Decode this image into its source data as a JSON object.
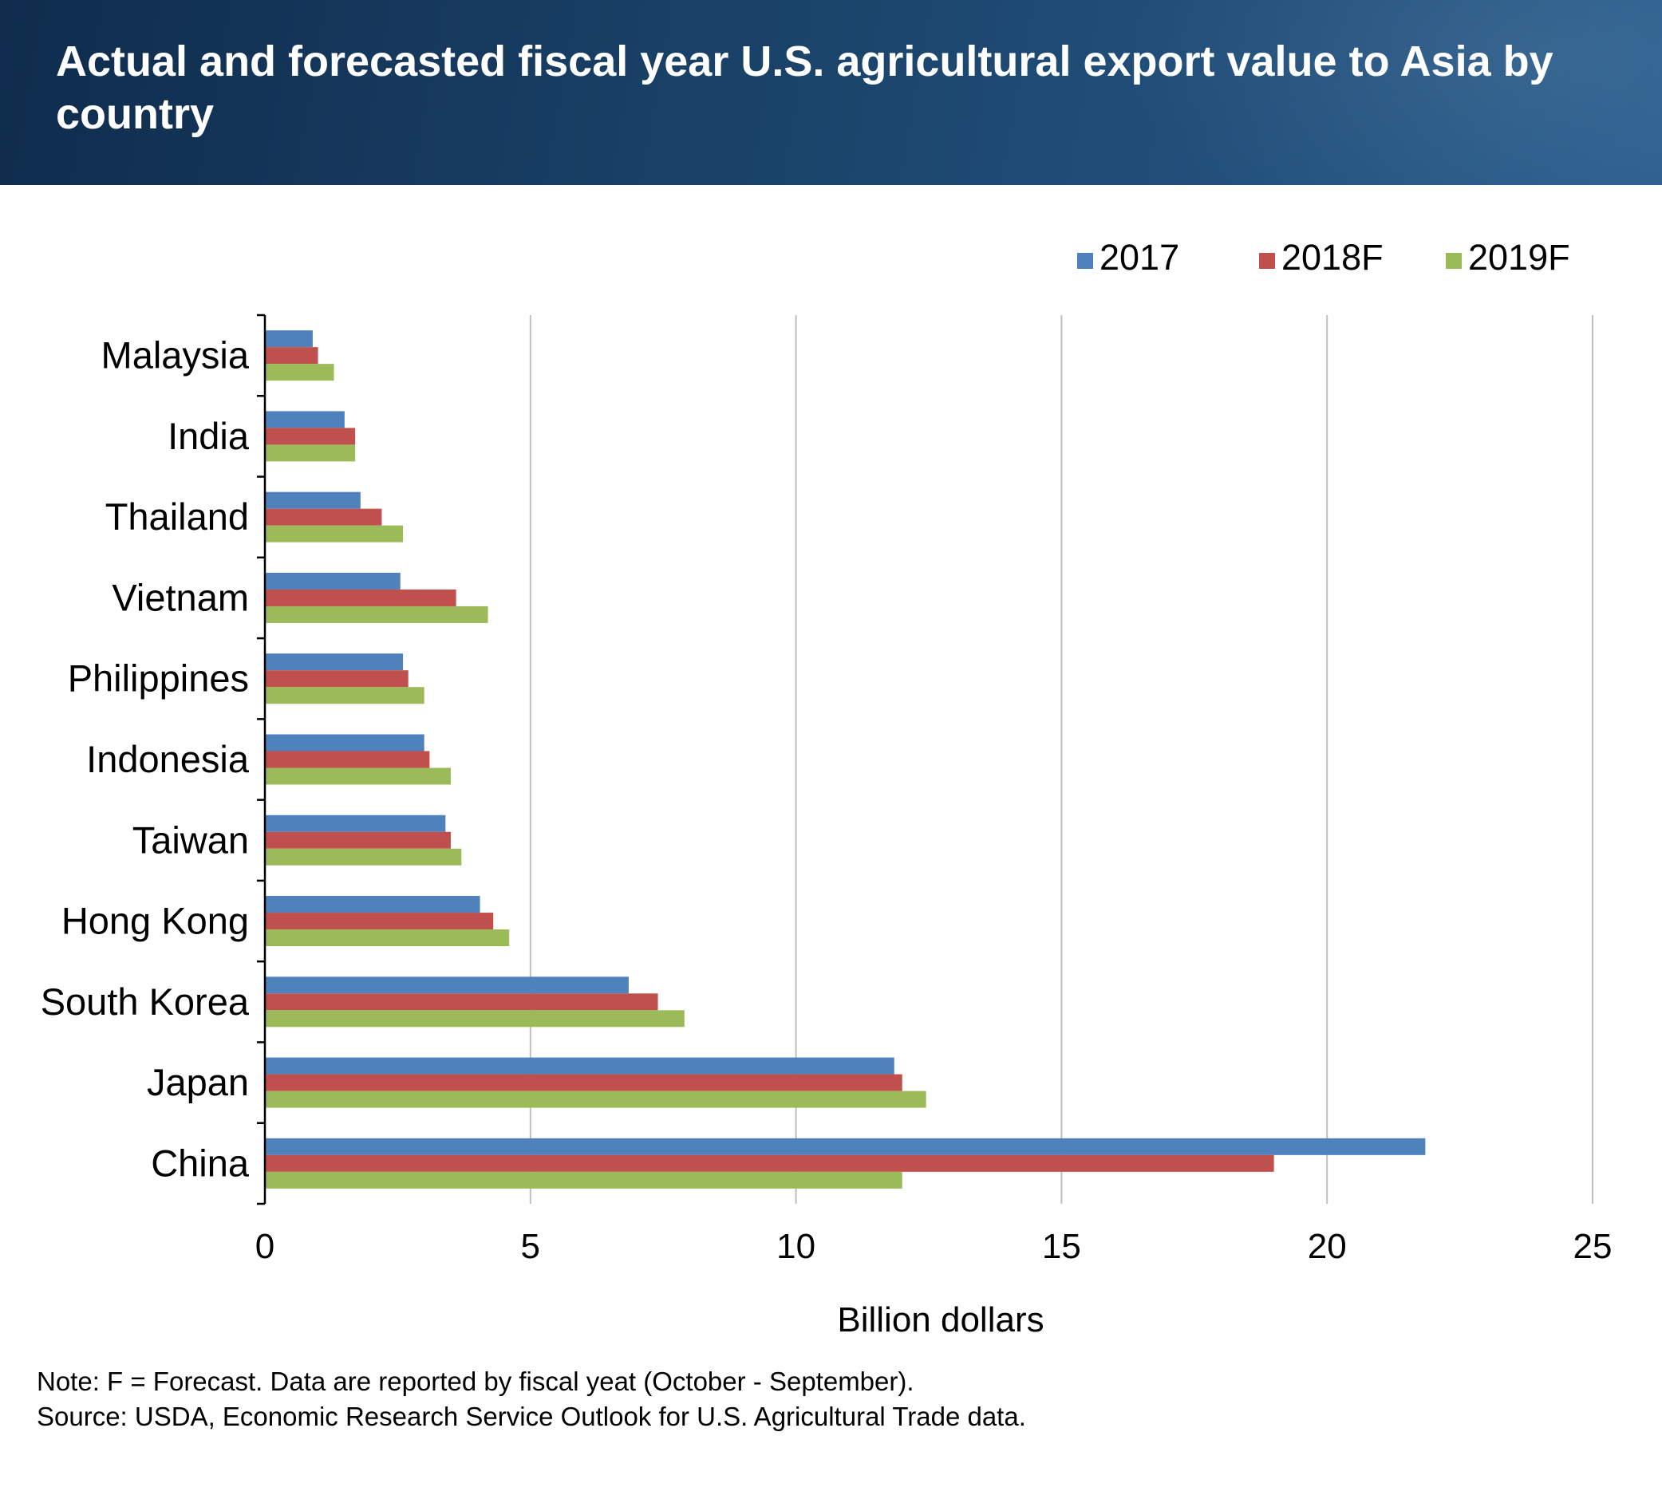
{
  "header": {
    "title": "Actual and forecasted fiscal year U.S. agricultural export value to Asia by country"
  },
  "notes": {
    "note": "Note: F = Forecast. Data are reported by fiscal yeat (October - September).",
    "source": "Source: USDA, Economic Research Service Outlook for U.S. Agricultural Trade data."
  },
  "chart_data": {
    "type": "bar",
    "orientation": "horizontal",
    "title": "Actual and forecasted fiscal year U.S. agricultural export value to Asia by country",
    "xlabel": "Billion dollars",
    "ylabel": "",
    "xlim": [
      0,
      25
    ],
    "xticks": [
      0,
      5,
      10,
      15,
      20,
      25
    ],
    "grid": "vertical",
    "legend_position": "top-right",
    "categories": [
      "Malaysia",
      "India",
      "Thailand",
      "Vietnam",
      "Philippines",
      "Indonesia",
      "Taiwan",
      "Hong Kong",
      "South Korea",
      "Japan",
      "China"
    ],
    "series": [
      {
        "name": "2017",
        "color": "#4f81bd",
        "values": [
          0.9,
          1.5,
          1.8,
          2.55,
          2.6,
          3.0,
          3.4,
          4.05,
          6.85,
          11.85,
          21.85
        ]
      },
      {
        "name": "2018F",
        "color": "#c0504d",
        "values": [
          1.0,
          1.7,
          2.2,
          3.6,
          2.7,
          3.1,
          3.5,
          4.3,
          7.4,
          12.0,
          19.0
        ]
      },
      {
        "name": "2019F",
        "color": "#9bbb59",
        "values": [
          1.3,
          1.7,
          2.6,
          4.2,
          3.0,
          3.5,
          3.7,
          4.6,
          7.9,
          12.45,
          12.0
        ]
      }
    ]
  }
}
